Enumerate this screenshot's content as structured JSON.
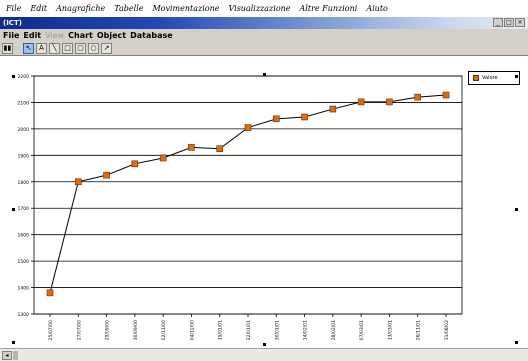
{
  "os_menu": [
    "File",
    "Edit",
    "Anagrafiche",
    "Tabelle",
    "Movimentazione",
    "Visualizzazione",
    "Altre Funzioni",
    "Aiuto"
  ],
  "window": {
    "title": "(ICT)"
  },
  "app_menu": [
    {
      "label": "File",
      "enabled": true
    },
    {
      "label": "Edit",
      "enabled": true
    },
    {
      "label": "View",
      "enabled": false
    },
    {
      "label": "Chart",
      "enabled": true
    },
    {
      "label": "Object",
      "enabled": true
    },
    {
      "label": "Database",
      "enabled": true
    }
  ],
  "toolbar": {
    "buttons": [
      {
        "name": "chart-type-icon",
        "glyph": "▮▮"
      },
      {
        "name": "pointer-icon",
        "glyph": "↖"
      },
      {
        "name": "text-tool-icon",
        "glyph": "A"
      },
      {
        "name": "line-tool-icon",
        "glyph": "╲"
      },
      {
        "name": "rectangle-tool-icon",
        "glyph": "□"
      },
      {
        "name": "rounded-rect-tool-icon",
        "glyph": "▢"
      },
      {
        "name": "ellipse-tool-icon",
        "glyph": "○"
      },
      {
        "name": "arrow-tool-icon",
        "glyph": "↗"
      }
    ]
  },
  "colors": {
    "marker_fill": "#e06a10",
    "marker_stroke": "#6b2c00",
    "line": "#000000",
    "grid": "#000000"
  },
  "chart_data": {
    "type": "line",
    "categories": [
      "25/07/00",
      "27/07/00",
      "29/09/00",
      "30/09/00",
      "02/11/00",
      "04/12/00",
      "15/01/01",
      "22/01/01",
      "30/01/01",
      "14/02/01",
      "28/02/01",
      "07/03/01",
      "13/03/01",
      "26/11/01",
      "31/08/02"
    ],
    "series": [
      {
        "name": "Valore",
        "values": [
          1380,
          1800,
          1825,
          1868,
          1890,
          1930,
          1925,
          2005,
          2038,
          2045,
          2075,
          2102,
          2102,
          2120,
          2128
        ]
      }
    ],
    "ylim": [
      1300,
      2200
    ],
    "yticks": [
      "1300",
      "1400",
      "1500",
      "1600",
      "1700",
      "1800",
      "1900",
      "2000",
      "2100",
      "2200"
    ],
    "grid": true,
    "legend_position": "top-right"
  }
}
